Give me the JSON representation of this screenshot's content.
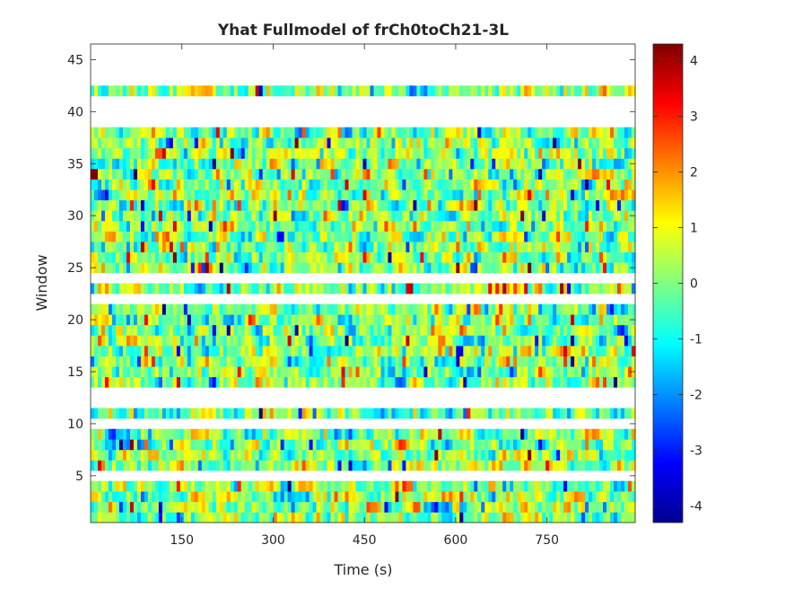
{
  "chart_data": {
    "type": "heatmap",
    "title": "Yhat Fullmodel of frCh0toCh21-3L",
    "xlabel": "Time (s)",
    "ylabel": "Window",
    "xlim": [
      0,
      895
    ],
    "ylim": [
      0.5,
      46.5
    ],
    "xticks": [
      150,
      300,
      450,
      600,
      750
    ],
    "yticks": [
      5,
      10,
      15,
      20,
      25,
      30,
      35,
      40,
      45
    ],
    "colormap": "jet",
    "clim": [
      -4.3,
      4.3
    ],
    "colorbar_ticks": [
      4,
      3,
      2,
      1,
      0,
      -1,
      -2,
      -3,
      -4
    ],
    "windows_present": [
      1,
      2,
      3,
      4,
      6,
      7,
      8,
      9,
      11,
      14,
      15,
      16,
      17,
      18,
      19,
      20,
      21,
      23,
      25,
      26,
      27,
      28,
      29,
      30,
      31,
      32,
      33,
      34,
      35,
      36,
      37,
      38,
      42
    ],
    "windows_empty": [
      5,
      10,
      12,
      13,
      22,
      24,
      39,
      40,
      41,
      43,
      44,
      45,
      46
    ],
    "values_note_free": true
  }
}
